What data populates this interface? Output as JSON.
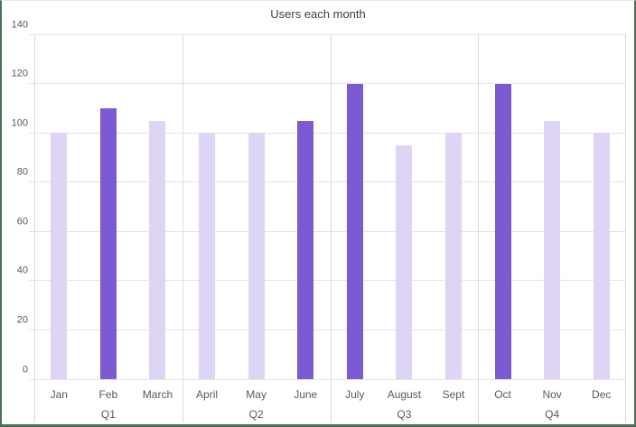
{
  "chart_data": {
    "type": "bar",
    "title": "Users each month",
    "categories": [
      "Jan",
      "Feb",
      "March",
      "April",
      "May",
      "June",
      "July",
      "August",
      "Sept",
      "Oct",
      "Nov",
      "Dec"
    ],
    "values": [
      100,
      110,
      105,
      100,
      100,
      105,
      120,
      95,
      100,
      120,
      105,
      100
    ],
    "highlighted": [
      false,
      true,
      false,
      false,
      false,
      true,
      true,
      false,
      false,
      true,
      false,
      false
    ],
    "group_labels": [
      "Q1",
      "Q2",
      "Q3",
      "Q4"
    ],
    "categories_per_group": 3,
    "xlabel": "",
    "ylabel": "",
    "ylim": [
      0,
      140
    ],
    "yticks": [
      0,
      20,
      40,
      60,
      80,
      100,
      120,
      140
    ],
    "grid": "horizontal",
    "legend": "none",
    "colors": {
      "bar_highlight": "#7B5AD2",
      "bar_normal": "#DED5F4",
      "gridline": "#E4E4E4",
      "axis_line": "#D9D9D9",
      "tick_text": "#595959",
      "title_text": "#3F3F3F",
      "frame_border": "#4C6E53"
    }
  }
}
